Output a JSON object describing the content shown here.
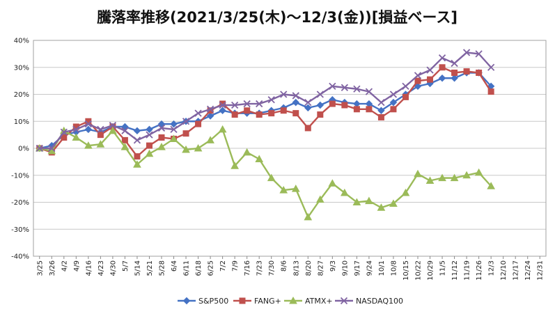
{
  "chart_data": {
    "type": "line",
    "title": "騰落率推移(2021/3/25(木)～12/3(金))[損益ベース]",
    "xlabel": "",
    "ylabel": "",
    "ylim": [
      -40,
      40
    ],
    "y_ticks": [
      -40,
      -30,
      -20,
      -10,
      0,
      10,
      20,
      30,
      40
    ],
    "y_tick_labels": [
      "-40%",
      "-30%",
      "-20%",
      "-10%",
      "0%",
      "10%",
      "20%",
      "30%",
      "40%"
    ],
    "categories": [
      "3/25",
      "3/26",
      "4/2",
      "4/9",
      "4/16",
      "4/23",
      "4/30",
      "5/7",
      "5/14",
      "5/21",
      "5/28",
      "6/4",
      "6/11",
      "6/18",
      "6/25",
      "7/2",
      "7/9",
      "7/16",
      "7/23",
      "7/30",
      "8/6",
      "8/13",
      "8/20",
      "8/27",
      "9/3",
      "9/10",
      "9/17",
      "9/24",
      "10/1",
      "10/8",
      "10/15",
      "10/22",
      "10/29",
      "11/5",
      "11/12",
      "11/19",
      "11/26",
      "12/3",
      "12/10",
      "12/17",
      "12/24",
      "12/31"
    ],
    "grid": true,
    "legend_position": "bottom",
    "series": [
      {
        "name": "S&P500",
        "color": "#4472C4",
        "marker": "diamond",
        "values": [
          0,
          1,
          5,
          6,
          7,
          6,
          8,
          8,
          6.5,
          7,
          9,
          9,
          10,
          10,
          12,
          14,
          13,
          13,
          13,
          14,
          15,
          17,
          15,
          16,
          18,
          17,
          16.5,
          16.5,
          14,
          17,
          20,
          23,
          24,
          26,
          26,
          28,
          28,
          23,
          null,
          null,
          null,
          null
        ]
      },
      {
        "name": "FANG+",
        "color": "#C0504D",
        "marker": "square",
        "values": [
          0,
          -1.5,
          4,
          8,
          10,
          5,
          8,
          3,
          -3,
          1,
          4,
          3.5,
          5.5,
          9,
          14,
          16.5,
          12.5,
          14,
          12.5,
          13,
          14,
          13,
          7.5,
          12.5,
          16.5,
          16,
          14.5,
          14.5,
          11.5,
          14.5,
          19,
          25,
          25.5,
          30,
          28,
          28.5,
          28,
          21,
          null,
          null,
          null,
          null
        ]
      },
      {
        "name": "ATMX+",
        "color": "#9BBB59",
        "marker": "triangle",
        "values": [
          0,
          -1,
          6.5,
          4,
          1,
          1.5,
          6.5,
          0.5,
          -6,
          -2,
          0.5,
          3.5,
          -0.5,
          0,
          3,
          7,
          -6.5,
          -1.5,
          -4,
          -11,
          -15.5,
          -15,
          -25.5,
          -19,
          -13,
          -16.5,
          -20,
          -19.5,
          -22,
          -20.5,
          -16.5,
          -9.5,
          -12,
          -11,
          -11,
          -10,
          -9,
          -14,
          null,
          null,
          null,
          null
        ]
      },
      {
        "name": "NASDAQ100",
        "color": "#8064A2",
        "marker": "x",
        "values": [
          0,
          0,
          6,
          7,
          9,
          7,
          8.5,
          6.5,
          3,
          5,
          7.5,
          7,
          10,
          13,
          14.5,
          16,
          16,
          16.5,
          16.5,
          18,
          20,
          19.5,
          17,
          20,
          23,
          22.5,
          22,
          21,
          17,
          20,
          23,
          27,
          29,
          33.5,
          31.5,
          35.5,
          35,
          30,
          null,
          null,
          null,
          null
        ]
      }
    ]
  }
}
